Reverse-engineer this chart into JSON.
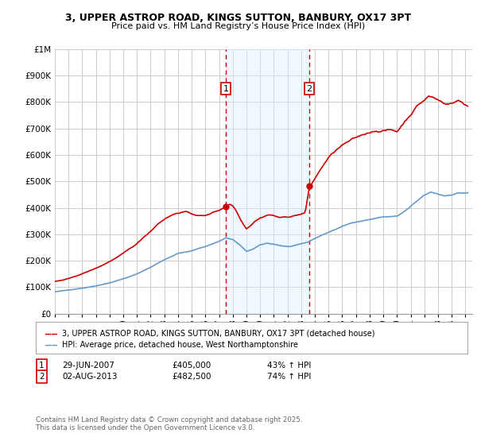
{
  "title": "3, UPPER ASTROP ROAD, KINGS SUTTON, BANBURY, OX17 3PT",
  "subtitle": "Price paid vs. HM Land Registry’s House Price Index (HPI)",
  "ylim": [
    0,
    1000000
  ],
  "xlim_start": 1995.0,
  "xlim_end": 2025.5,
  "background_color": "#ffffff",
  "grid_color": "#cccccc",
  "transaction1_x": 2007.495,
  "transaction1_y": 405000,
  "transaction1_label": "1",
  "transaction2_x": 2013.583,
  "transaction2_y": 482500,
  "transaction2_label": "2",
  "shade_color": "#ddeeff",
  "shade_alpha": 0.45,
  "property_line_color": "#cc0000",
  "hpi_line_color": "#6699cc",
  "legend_property": "3, UPPER ASTROP ROAD, KINGS SUTTON, BANBURY, OX17 3PT (detached house)",
  "legend_hpi": "HPI: Average price, detached house, West Northamptonshire",
  "footer1": "Contains HM Land Registry data © Crown copyright and database right 2025.",
  "footer2": "This data is licensed under the Open Government Licence v3.0.",
  "table_row1_num": "1",
  "table_row1_date": "29-JUN-2007",
  "table_row1_price": "£405,000",
  "table_row1_hpi": "43% ↑ HPI",
  "table_row2_num": "2",
  "table_row2_date": "02-AUG-2013",
  "table_row2_price": "£482,500",
  "table_row2_hpi": "74% ↑ HPI"
}
